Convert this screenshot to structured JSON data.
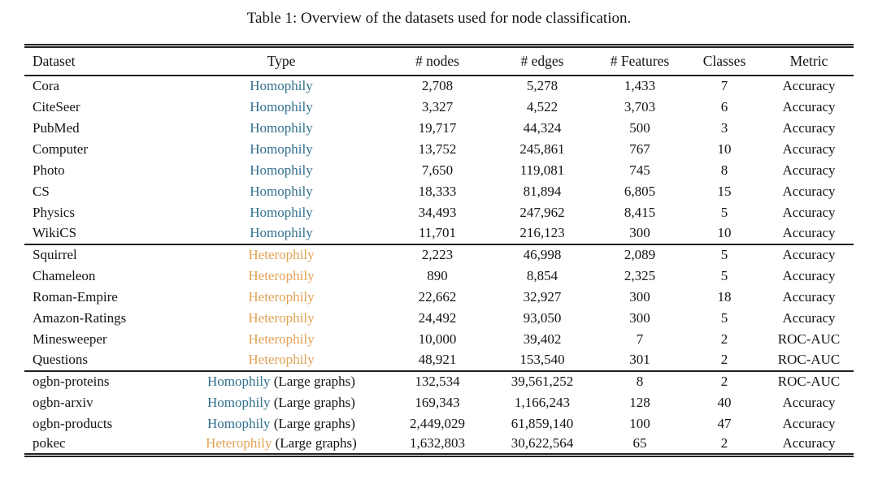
{
  "title": "Table 1: Overview of the datasets used for node classification.",
  "colors": {
    "homophily": "#31708E",
    "heterophily": "#E2A253",
    "ink": "#141414",
    "rule": "#222222"
  },
  "table": {
    "columns": [
      {
        "key": "dataset",
        "label": "Dataset"
      },
      {
        "key": "type",
        "label": "Type"
      },
      {
        "key": "nodes",
        "label": "# nodes"
      },
      {
        "key": "edges",
        "label": "# edges"
      },
      {
        "key": "features",
        "label": "# Features"
      },
      {
        "key": "classes",
        "label": "Classes"
      },
      {
        "key": "metric",
        "label": "Metric"
      }
    ],
    "sections": [
      {
        "name": "homophily",
        "rows": [
          {
            "dataset": "Cora",
            "type": {
              "label": "Homophily",
              "kind": "homophily",
              "suffix": ""
            },
            "nodes": "2,708",
            "edges": "5,278",
            "features": "1,433",
            "classes": "7",
            "metric": "Accuracy"
          },
          {
            "dataset": "CiteSeer",
            "type": {
              "label": "Homophily",
              "kind": "homophily",
              "suffix": ""
            },
            "nodes": "3,327",
            "edges": "4,522",
            "features": "3,703",
            "classes": "6",
            "metric": "Accuracy"
          },
          {
            "dataset": "PubMed",
            "type": {
              "label": "Homophily",
              "kind": "homophily",
              "suffix": ""
            },
            "nodes": "19,717",
            "edges": "44,324",
            "features": "500",
            "classes": "3",
            "metric": "Accuracy"
          },
          {
            "dataset": "Computer",
            "type": {
              "label": "Homophily",
              "kind": "homophily",
              "suffix": ""
            },
            "nodes": "13,752",
            "edges": "245,861",
            "features": "767",
            "classes": "10",
            "metric": "Accuracy"
          },
          {
            "dataset": "Photo",
            "type": {
              "label": "Homophily",
              "kind": "homophily",
              "suffix": ""
            },
            "nodes": "7,650",
            "edges": "119,081",
            "features": "745",
            "classes": "8",
            "metric": "Accuracy"
          },
          {
            "dataset": "CS",
            "type": {
              "label": "Homophily",
              "kind": "homophily",
              "suffix": ""
            },
            "nodes": "18,333",
            "edges": "81,894",
            "features": "6,805",
            "classes": "15",
            "metric": "Accuracy"
          },
          {
            "dataset": "Physics",
            "type": {
              "label": "Homophily",
              "kind": "homophily",
              "suffix": ""
            },
            "nodes": "34,493",
            "edges": "247,962",
            "features": "8,415",
            "classes": "5",
            "metric": "Accuracy"
          },
          {
            "dataset": "WikiCS",
            "type": {
              "label": "Homophily",
              "kind": "homophily",
              "suffix": ""
            },
            "nodes": "11,701",
            "edges": "216,123",
            "features": "300",
            "classes": "10",
            "metric": "Accuracy"
          }
        ]
      },
      {
        "name": "heterophily",
        "rows": [
          {
            "dataset": "Squirrel",
            "type": {
              "label": "Heterophily",
              "kind": "heterophily",
              "suffix": ""
            },
            "nodes": "2,223",
            "edges": "46,998",
            "features": "2,089",
            "classes": "5",
            "metric": "Accuracy"
          },
          {
            "dataset": "Chameleon",
            "type": {
              "label": "Heterophily",
              "kind": "heterophily",
              "suffix": ""
            },
            "nodes": "890",
            "edges": "8,854",
            "features": "2,325",
            "classes": "5",
            "metric": "Accuracy"
          },
          {
            "dataset": "Roman-Empire",
            "type": {
              "label": "Heterophily",
              "kind": "heterophily",
              "suffix": ""
            },
            "nodes": "22,662",
            "edges": "32,927",
            "features": "300",
            "classes": "18",
            "metric": "Accuracy"
          },
          {
            "dataset": "Amazon-Ratings",
            "type": {
              "label": "Heterophily",
              "kind": "heterophily",
              "suffix": ""
            },
            "nodes": "24,492",
            "edges": "93,050",
            "features": "300",
            "classes": "5",
            "metric": "Accuracy"
          },
          {
            "dataset": "Minesweeper",
            "type": {
              "label": "Heterophily",
              "kind": "heterophily",
              "suffix": ""
            },
            "nodes": "10,000",
            "edges": "39,402",
            "features": "7",
            "classes": "2",
            "metric": "ROC-AUC"
          },
          {
            "dataset": "Questions",
            "type": {
              "label": "Heterophily",
              "kind": "heterophily",
              "suffix": ""
            },
            "nodes": "48,921",
            "edges": "153,540",
            "features": "301",
            "classes": "2",
            "metric": "ROC-AUC"
          }
        ]
      },
      {
        "name": "large-graphs",
        "rows": [
          {
            "dataset": "ogbn-proteins",
            "type": {
              "label": "Homophily",
              "kind": "homophily",
              "suffix": "(Large graphs)"
            },
            "nodes": "132,534",
            "edges": "39,561,252",
            "features": "8",
            "classes": "2",
            "metric": "ROC-AUC"
          },
          {
            "dataset": "ogbn-arxiv",
            "type": {
              "label": "Homophily",
              "kind": "homophily",
              "suffix": "(Large graphs)"
            },
            "nodes": "169,343",
            "edges": "1,166,243",
            "features": "128",
            "classes": "40",
            "metric": "Accuracy"
          },
          {
            "dataset": "ogbn-products",
            "type": {
              "label": "Homophily",
              "kind": "homophily",
              "suffix": "(Large graphs)"
            },
            "nodes": "2,449,029",
            "edges": "61,859,140",
            "features": "100",
            "classes": "47",
            "metric": "Accuracy"
          },
          {
            "dataset": "pokec",
            "type": {
              "label": "Heterophily",
              "kind": "heterophily",
              "suffix": "(Large graphs)"
            },
            "nodes": "1,632,803",
            "edges": "30,622,564",
            "features": "65",
            "classes": "2",
            "metric": "Accuracy"
          }
        ]
      }
    ]
  }
}
